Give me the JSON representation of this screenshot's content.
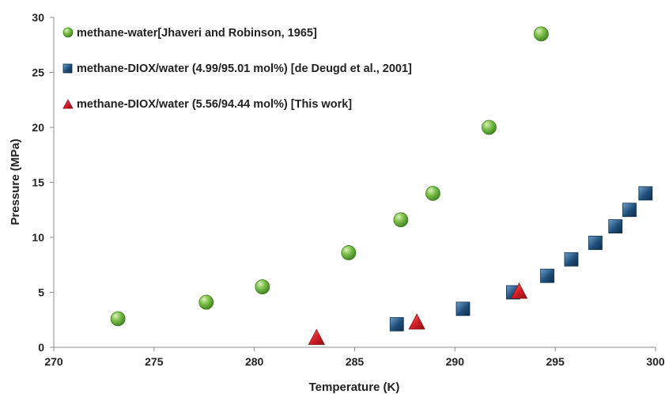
{
  "chart_data": {
    "type": "scatter",
    "xlabel": "Temperature (K)",
    "ylabel": "Pressure (MPa)",
    "xlim": [
      270,
      300
    ],
    "ylim": [
      0,
      30
    ],
    "x_ticks": [
      "270",
      "275",
      "280",
      "285",
      "290",
      "295",
      "300"
    ],
    "y_ticks": [
      "0",
      "5",
      "10",
      "15",
      "20",
      "25",
      "30"
    ],
    "grid": false,
    "legend_position": "top-left",
    "series": [
      {
        "name": "methane-water[Jhaveri and Robinson, 1965]",
        "marker": "circle",
        "color": "#6db33f",
        "points": [
          {
            "x": 273.2,
            "y": 2.6
          },
          {
            "x": 277.6,
            "y": 4.1
          },
          {
            "x": 280.4,
            "y": 5.5
          },
          {
            "x": 284.7,
            "y": 8.6
          },
          {
            "x": 287.3,
            "y": 11.6
          },
          {
            "x": 288.9,
            "y": 14.0
          },
          {
            "x": 291.7,
            "y": 20.0
          },
          {
            "x": 294.3,
            "y": 28.5
          }
        ]
      },
      {
        "name": "methane-DIOX/water (4.99/95.01 mol%) [de Deugd et al., 2001]",
        "marker": "square",
        "color": "#1f4e79",
        "points": [
          {
            "x": 287.1,
            "y": 2.1
          },
          {
            "x": 290.4,
            "y": 3.5
          },
          {
            "x": 292.9,
            "y": 5.0
          },
          {
            "x": 294.6,
            "y": 6.5
          },
          {
            "x": 295.8,
            "y": 8.0
          },
          {
            "x": 297.0,
            "y": 9.5
          },
          {
            "x": 298.0,
            "y": 11.0
          },
          {
            "x": 298.7,
            "y": 12.5
          },
          {
            "x": 299.5,
            "y": 14.0
          }
        ]
      },
      {
        "name": "methane-DIOX/water (5.56/94.44 mol%) [This work]",
        "marker": "triangle",
        "color": "#d62027",
        "points": [
          {
            "x": 283.1,
            "y": 0.9
          },
          {
            "x": 288.1,
            "y": 2.3
          },
          {
            "x": 293.2,
            "y": 5.1
          }
        ]
      }
    ]
  }
}
